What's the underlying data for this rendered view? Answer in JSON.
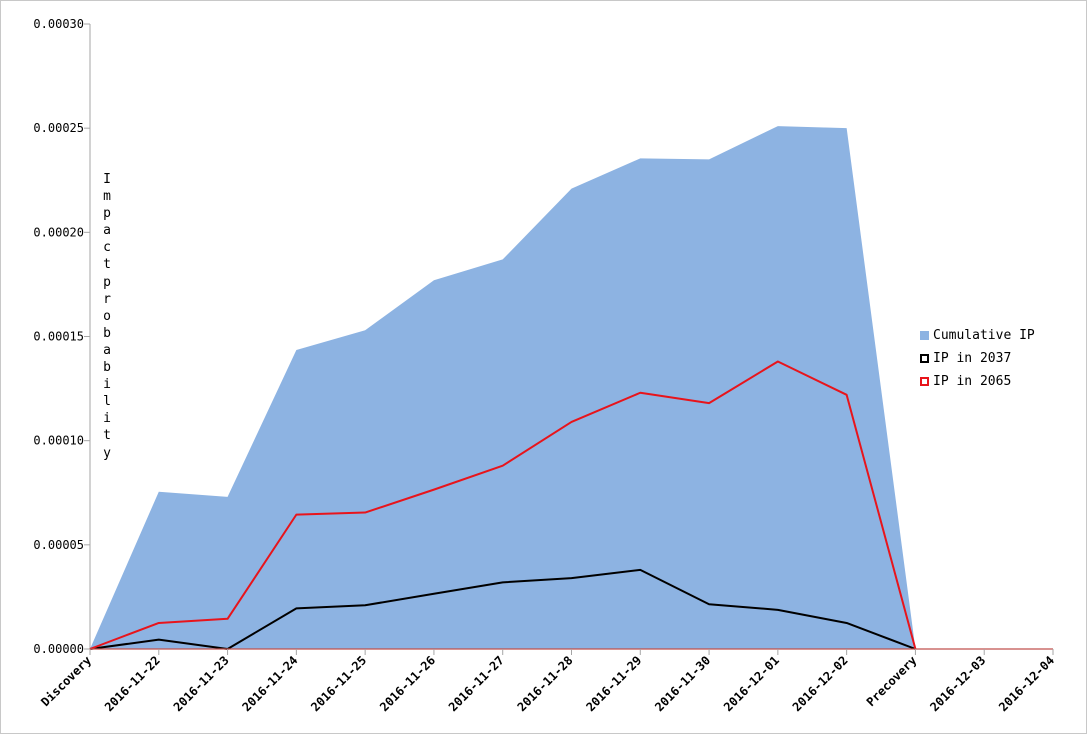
{
  "chart_data": {
    "type": "area",
    "categories": [
      "Discovery",
      "2016-11-22",
      "2016-11-23",
      "2016-11-24",
      "2016-11-25",
      "2016-11-26",
      "2016-11-27",
      "2016-11-28",
      "2016-11-29",
      "2016-11-30",
      "2016-12-01",
      "2016-12-02",
      "Precovery",
      "2016-12-03",
      "2016-12-04"
    ],
    "series": [
      {
        "name": "Cumulative IP",
        "kind": "area",
        "color": "#8db3e2",
        "values": [
          0,
          7.55e-05,
          7.3e-05,
          0.0001435,
          0.000153,
          0.000177,
          0.000187,
          0.000221,
          0.0002355,
          0.000235,
          0.000251,
          0.00025,
          0,
          null,
          null
        ]
      },
      {
        "name": "IP in 2037",
        "kind": "line",
        "color": "#000000",
        "values": [
          0,
          4.5e-06,
          0,
          1.95e-05,
          2.1e-05,
          2.65e-05,
          3.2e-05,
          3.4e-05,
          3.8e-05,
          2.15e-05,
          1.88e-05,
          1.25e-05,
          0,
          null,
          null
        ]
      },
      {
        "name": "IP in 2065",
        "kind": "line",
        "color": "#e8141b",
        "values": [
          0,
          1.25e-05,
          1.45e-05,
          6.45e-05,
          6.55e-05,
          7.65e-05,
          8.8e-05,
          0.000109,
          0.000123,
          0.000118,
          0.000138,
          0.000122,
          0,
          null,
          null
        ]
      }
    ],
    "ylabel": "Impact probability",
    "ylim": [
      0,
      0.0003
    ],
    "yticks": [
      "0.00000",
      "0.00005",
      "0.00010",
      "0.00015",
      "0.00020",
      "0.00025",
      "0.00030"
    ],
    "ytick_values": [
      0,
      5e-05,
      0.0001,
      0.00015,
      0.0002,
      0.00025,
      0.0003
    ],
    "legend_position": "right",
    "grid": false
  }
}
